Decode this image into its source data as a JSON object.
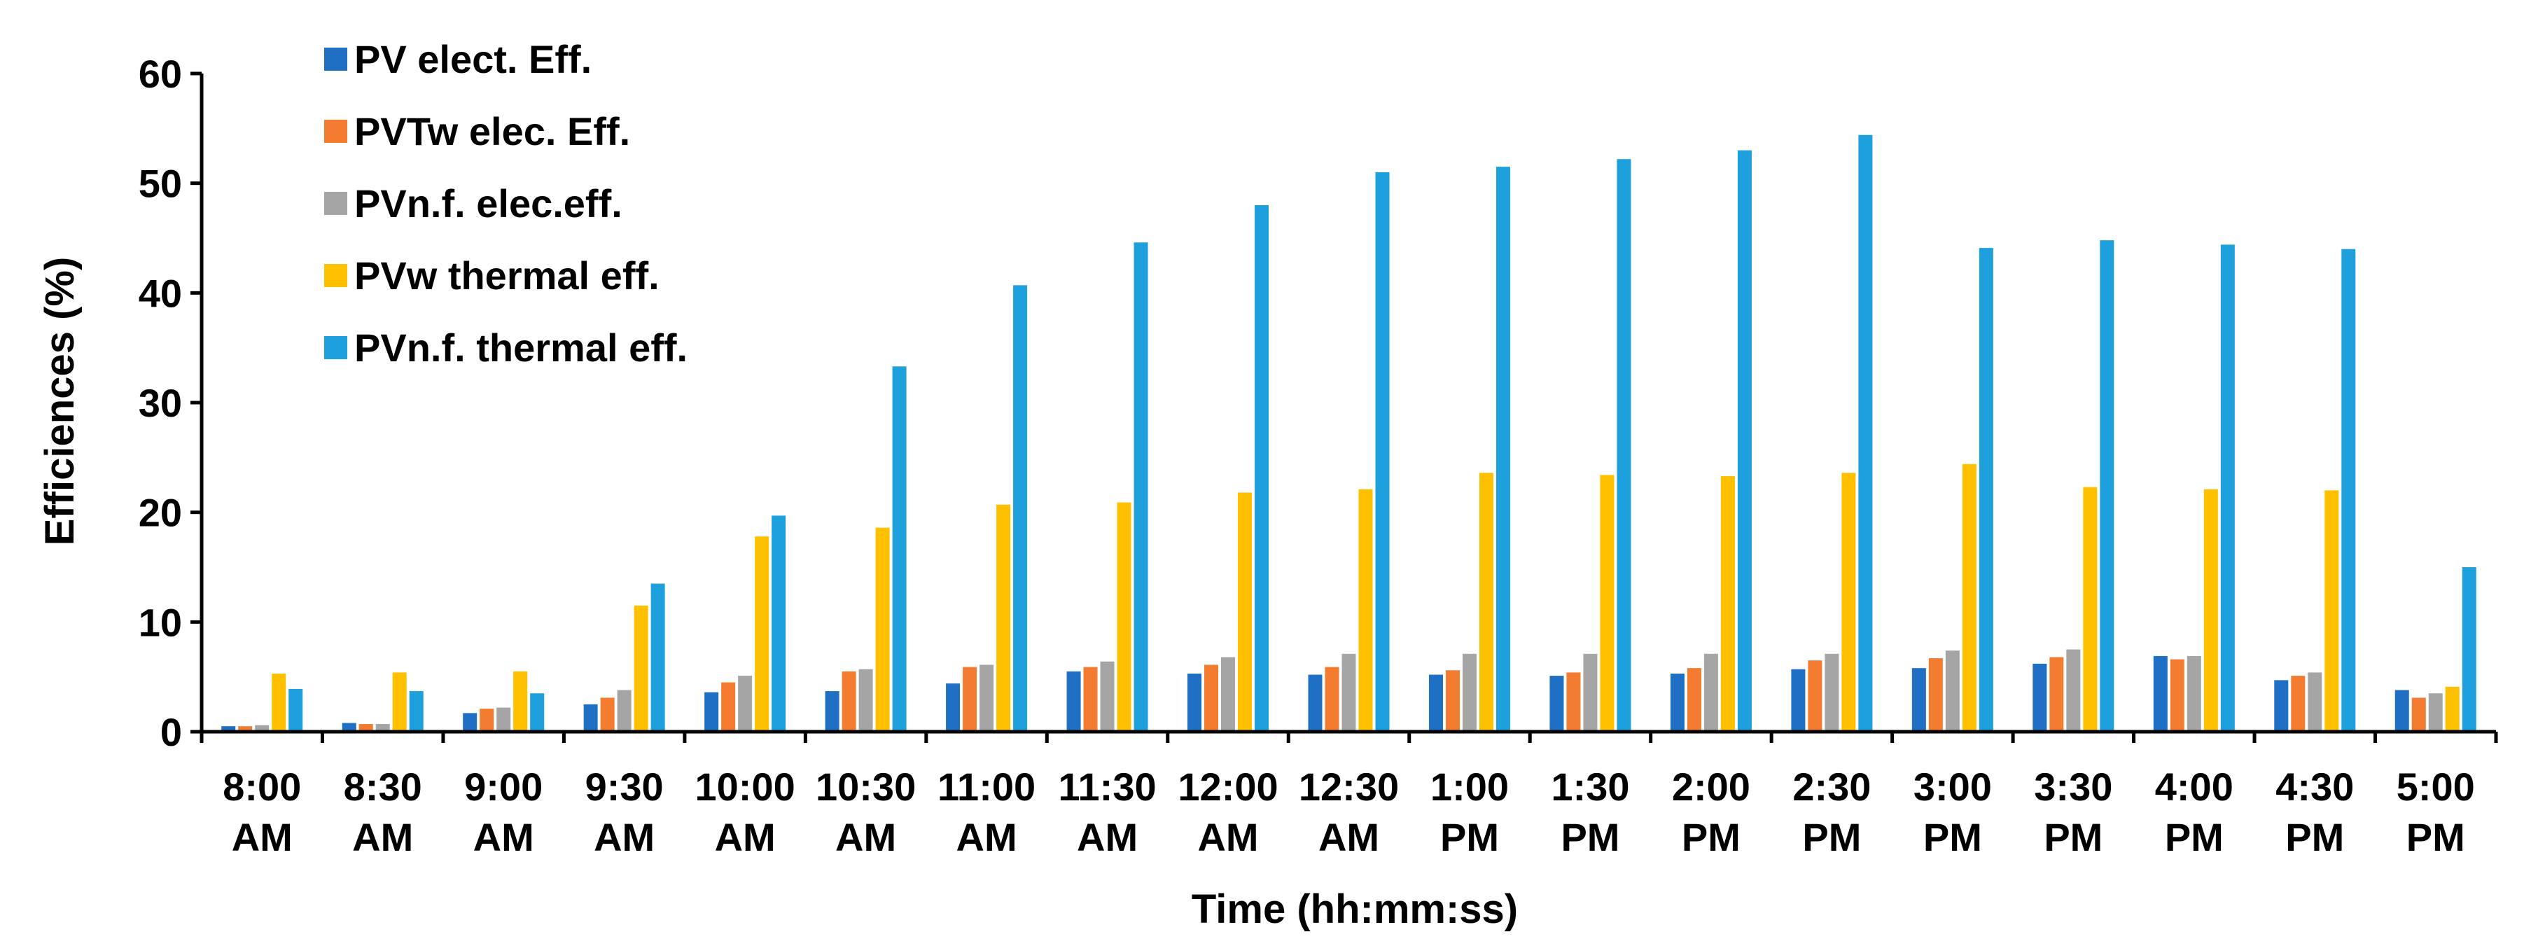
{
  "chart_data": {
    "type": "bar",
    "xlabel": "Time (hh:mm:ss)",
    "ylabel": "Efficiences (%)",
    "ylim": [
      0,
      60
    ],
    "yticks": [
      0,
      10,
      20,
      30,
      40,
      50,
      60
    ],
    "grid": false,
    "legend_position": "top-left",
    "categories": [
      [
        "8:00",
        "AM"
      ],
      [
        "8:30",
        "AM"
      ],
      [
        "9:00",
        "AM"
      ],
      [
        "9:30",
        "AM"
      ],
      [
        "10:00",
        "AM"
      ],
      [
        "10:30",
        "AM"
      ],
      [
        "11:00",
        "AM"
      ],
      [
        "11:30",
        "AM"
      ],
      [
        "12:00",
        "AM"
      ],
      [
        "12:30",
        "AM"
      ],
      [
        "1:00",
        "PM"
      ],
      [
        "1:30",
        "PM"
      ],
      [
        "2:00",
        "PM"
      ],
      [
        "2:30",
        "PM"
      ],
      [
        "3:00",
        "PM"
      ],
      [
        "3:30",
        "PM"
      ],
      [
        "4:00",
        "PM"
      ],
      [
        "4:30",
        "PM"
      ],
      [
        "5:00",
        "PM"
      ]
    ],
    "series": [
      {
        "name": "PV elect. Eff.",
        "color": "#1f6fc5",
        "values": [
          0.5,
          0.8,
          1.7,
          2.5,
          3.6,
          3.7,
          4.4,
          5.5,
          5.3,
          5.2,
          5.2,
          5.1,
          5.3,
          5.7,
          5.8,
          6.2,
          6.9,
          4.7,
          3.8
        ]
      },
      {
        "name": "PVTw elec. Eff.",
        "color": "#f47c30",
        "values": [
          0.5,
          0.7,
          2.1,
          3.1,
          4.5,
          5.5,
          5.9,
          5.9,
          6.1,
          5.9,
          5.6,
          5.4,
          5.8,
          6.5,
          6.7,
          6.8,
          6.6,
          5.1,
          3.1
        ]
      },
      {
        "name": "PVn.f. elec.eff.",
        "color": "#a5a5a5",
        "values": [
          0.6,
          0.7,
          2.2,
          3.8,
          5.1,
          5.7,
          6.1,
          6.4,
          6.8,
          7.1,
          7.1,
          7.1,
          7.1,
          7.1,
          7.4,
          7.5,
          6.9,
          5.4,
          3.5
        ]
      },
      {
        "name": "PVw thermal eff.",
        "color": "#ffc000",
        "values": [
          5.3,
          5.4,
          5.5,
          11.5,
          17.8,
          18.6,
          20.7,
          20.9,
          21.8,
          22.1,
          23.6,
          23.4,
          23.3,
          23.6,
          24.4,
          22.3,
          22.1,
          22.0,
          4.1
        ]
      },
      {
        "name": "PVn.f. thermal eff.",
        "color": "#1ea0dc",
        "values": [
          3.9,
          3.7,
          3.5,
          13.5,
          19.7,
          33.3,
          40.7,
          44.6,
          48.0,
          51.0,
          51.5,
          52.2,
          53.0,
          54.4,
          44.1,
          44.8,
          44.4,
          44.0,
          15.0
        ]
      }
    ]
  }
}
